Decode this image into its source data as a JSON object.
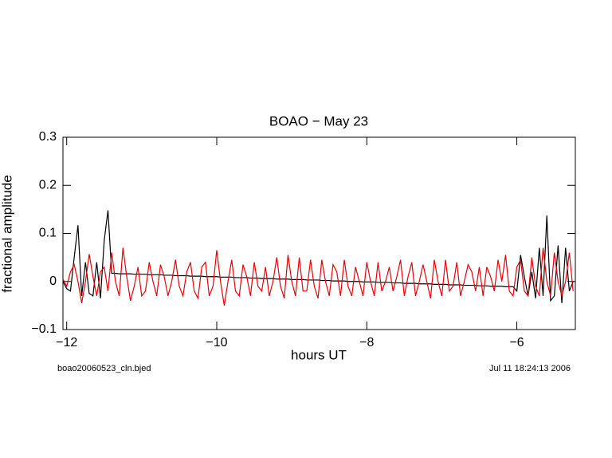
{
  "chart_data": {
    "type": "line",
    "title": "BOAO − May 23",
    "xlabel": "hours UT",
    "ylabel": "fractional amplitude",
    "annotations": [
      "boao20060523_cln.bjed",
      "Jul 11 18:24:13 2006"
    ],
    "xlim": [
      -12.05,
      -5.22
    ],
    "ylim": [
      -0.1,
      0.3
    ],
    "xticks": [
      {
        "value": -12,
        "label": "−12"
      },
      {
        "value": -10,
        "label": "−10"
      },
      {
        "value": -8,
        "label": "−8"
      },
      {
        "value": -6,
        "label": "−6"
      }
    ],
    "yticks": [
      {
        "value": -0.1,
        "label": "−0.1"
      },
      0,
      0.1,
      0.2,
      0.3
    ],
    "x": [
      -12.05,
      -12,
      -11.95,
      -11.9,
      -11.85,
      -11.8,
      -11.75,
      -11.7,
      -11.65,
      -11.6,
      -11.55,
      -11.5,
      -11.45,
      -11.4,
      -11.35,
      -11.3,
      -11.25,
      -11.2,
      -11.15,
      -11.1,
      -11.05,
      -11,
      -10.95,
      -10.9,
      -10.85,
      -10.8,
      -10.75,
      -10.7,
      -10.65,
      -10.6,
      -10.55,
      -10.5,
      -10.45,
      -10.4,
      -10.35,
      -10.3,
      -10.25,
      -10.2,
      -10.15,
      -10.1,
      -10.05,
      -10,
      -9.95,
      -9.9,
      -9.85,
      -9.8,
      -9.75,
      -9.7,
      -9.65,
      -9.6,
      -9.55,
      -9.5,
      -9.45,
      -9.4,
      -9.35,
      -9.3,
      -9.25,
      -9.2,
      -9.15,
      -9.1,
      -9.05,
      -9,
      -8.95,
      -8.9,
      -8.85,
      -8.8,
      -8.75,
      -8.7,
      -8.65,
      -8.6,
      -8.55,
      -8.5,
      -8.45,
      -8.4,
      -8.35,
      -8.3,
      -8.25,
      -8.2,
      -8.15,
      -8.1,
      -8.05,
      -8,
      -7.95,
      -7.9,
      -7.85,
      -7.8,
      -7.75,
      -7.7,
      -7.65,
      -7.6,
      -7.55,
      -7.5,
      -7.45,
      -7.4,
      -7.35,
      -7.3,
      -7.25,
      -7.2,
      -7.15,
      -7.1,
      -7.05,
      -7,
      -6.95,
      -6.9,
      -6.85,
      -6.8,
      -6.75,
      -6.7,
      -6.65,
      -6.6,
      -6.55,
      -6.5,
      -6.45,
      -6.4,
      -6.35,
      -6.3,
      -6.25,
      -6.2,
      -6.15,
      -6.1,
      -6.05,
      -6,
      -5.95,
      -5.9,
      -5.85,
      -5.8,
      -5.75,
      -5.7,
      -5.65,
      -5.6,
      -5.55,
      -5.5,
      -5.45,
      -5.4,
      -5.35,
      -5.3,
      -5.25
    ],
    "series": [
      {
        "color": "#000000",
        "values": [
          0.0,
          -0.015,
          -0.02,
          0.05,
          0.117,
          -0.03,
          0.04,
          -0.025,
          -0.03,
          0.04,
          -0.035,
          0.085,
          0.148,
          0.017,
          0.017,
          0.016,
          0.016,
          0.016,
          0.016,
          0.015,
          0.015,
          0.015,
          0.015,
          0.014,
          0.014,
          0.014,
          0.014,
          0.013,
          0.013,
          0.013,
          0.012,
          0.012,
          0.012,
          0.012,
          0.011,
          0.011,
          0.011,
          0.011,
          0.01,
          0.01,
          0.01,
          0.01,
          0.009,
          0.009,
          0.009,
          0.009,
          0.008,
          0.008,
          0.008,
          0.008,
          0.007,
          0.007,
          0.007,
          0.006,
          0.006,
          0.006,
          0.006,
          0.005,
          0.005,
          0.005,
          0.005,
          0.004,
          0.004,
          0.004,
          0.004,
          0.003,
          0.003,
          0.003,
          0.003,
          0.002,
          0.002,
          0.002,
          0.001,
          0.001,
          0.001,
          0.001,
          0.0,
          0.0,
          0.0,
          0.0,
          -0.001,
          -0.001,
          -0.001,
          -0.001,
          -0.002,
          -0.002,
          -0.002,
          -0.002,
          -0.003,
          -0.003,
          -0.003,
          -0.004,
          -0.004,
          -0.004,
          -0.004,
          -0.005,
          -0.005,
          -0.005,
          -0.005,
          -0.006,
          -0.006,
          -0.006,
          -0.006,
          -0.007,
          -0.007,
          -0.007,
          -0.007,
          -0.008,
          -0.008,
          -0.008,
          -0.008,
          -0.009,
          -0.009,
          -0.009,
          -0.01,
          -0.01,
          -0.01,
          -0.01,
          -0.011,
          -0.011,
          -0.011,
          -0.02,
          0.055,
          0.01,
          -0.03,
          0.02,
          -0.035,
          0.07,
          -0.03,
          0.137,
          -0.04,
          -0.03,
          0.075,
          -0.045,
          0.07,
          -0.02,
          0.0
        ]
      },
      {
        "color": "#e8000b",
        "values": [
          0.005,
          -0.01,
          0.02,
          0.035,
          0.0,
          -0.045,
          0.0,
          0.057,
          0.01,
          -0.03,
          0.02,
          0.03,
          -0.02,
          0.06,
          0.0,
          -0.03,
          0.07,
          0.01,
          -0.04,
          -0.01,
          0.03,
          -0.03,
          -0.02,
          0.04,
          0.0,
          -0.03,
          0.035,
          0.01,
          -0.03,
          0.0,
          0.045,
          -0.01,
          -0.03,
          0.02,
          0.04,
          -0.02,
          -0.035,
          0.03,
          0.04,
          -0.03,
          -0.01,
          0.065,
          0.0,
          -0.05,
          0.0,
          0.045,
          -0.02,
          -0.03,
          0.035,
          0.01,
          -0.03,
          0.04,
          -0.01,
          -0.02,
          0.03,
          -0.03,
          0.0,
          0.05,
          -0.01,
          -0.035,
          0.055,
          0.0,
          -0.03,
          0.05,
          -0.02,
          -0.02,
          0.045,
          -0.01,
          -0.035,
          0.045,
          0.0,
          -0.03,
          0.035,
          0.02,
          -0.03,
          0.045,
          -0.01,
          -0.03,
          0.03,
          0.0,
          -0.03,
          0.04,
          0.0,
          -0.03,
          0.04,
          -0.02,
          0.0,
          0.03,
          -0.02,
          0.01,
          0.045,
          -0.03,
          0.01,
          0.04,
          -0.03,
          0.0,
          0.035,
          0.0,
          -0.035,
          0.045,
          0.0,
          -0.03,
          0.045,
          -0.02,
          -0.01,
          0.04,
          -0.03,
          0.0,
          0.035,
          0.02,
          -0.02,
          0.03,
          -0.03,
          0.03,
          0.01,
          -0.02,
          0.045,
          0.0,
          0.055,
          -0.02,
          -0.03,
          0.03,
          0.045,
          -0.02,
          -0.03,
          0.05,
          -0.01,
          -0.03,
          0.07,
          0.0,
          -0.03,
          0.06,
          0.0,
          -0.03,
          0.0,
          0.06,
          -0.02
        ]
      }
    ]
  }
}
